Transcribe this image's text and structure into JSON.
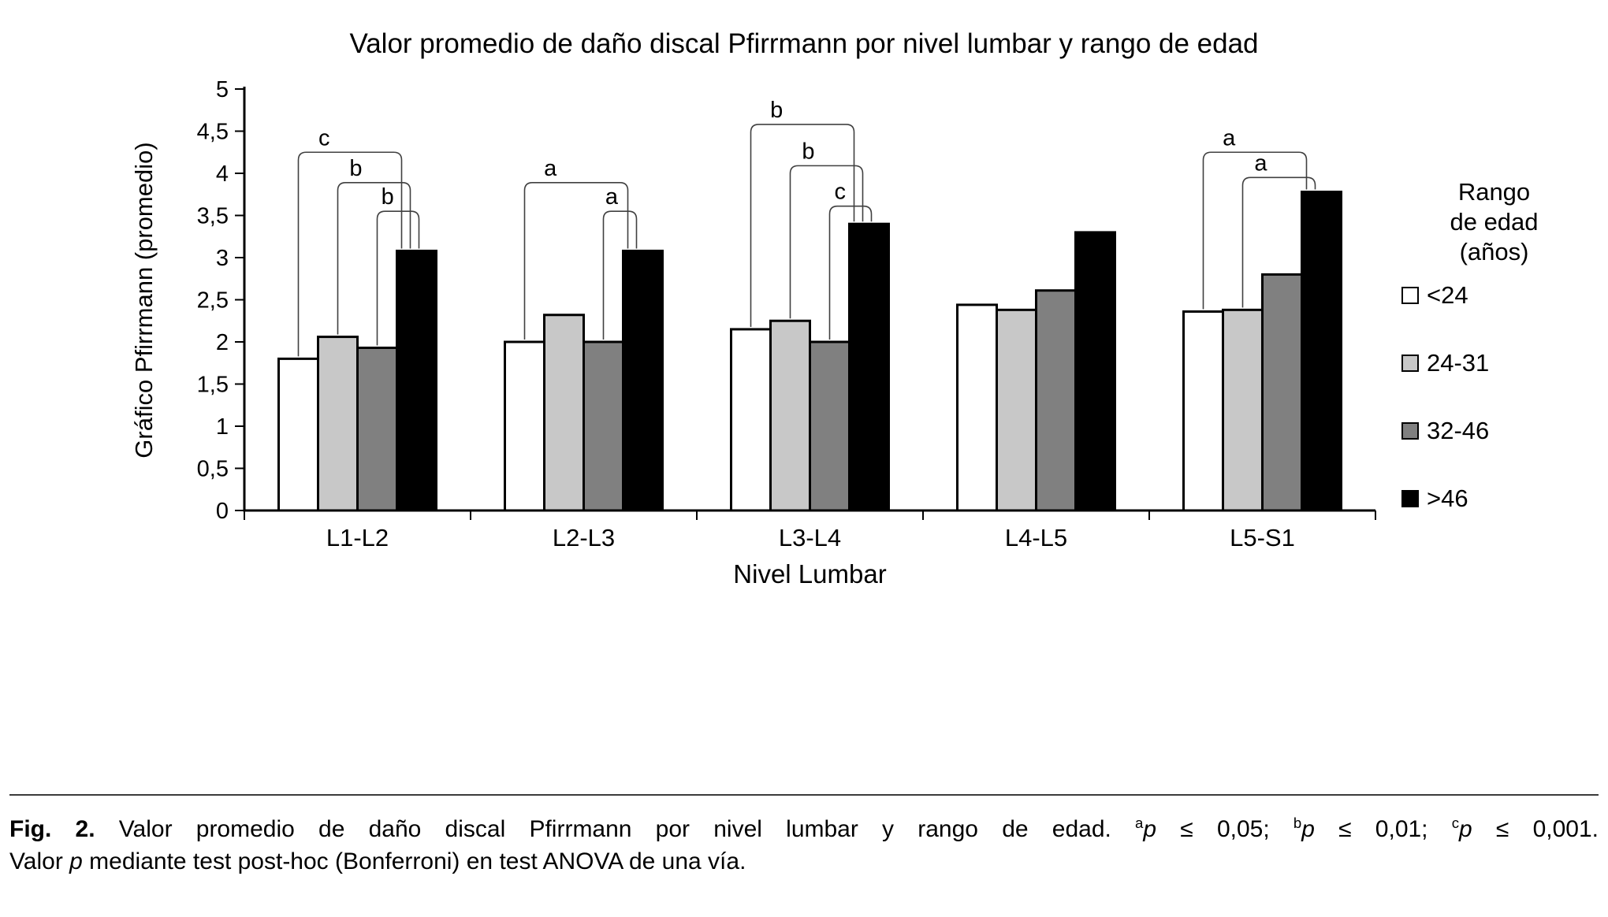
{
  "chart_data": {
    "type": "bar",
    "title": "Valor promedio de daño discal Pfirrmann por nivel lumbar y rango de edad",
    "xlabel": "Nivel Lumbar",
    "ylabel": "Gráfico Pfirrmann (promedio)",
    "ylim": [
      0,
      5
    ],
    "ytick_step": 0.5,
    "ytick_labels": [
      "0",
      "0,5",
      "1",
      "1,5",
      "2",
      "2,5",
      "3",
      "3,5",
      "4",
      "4,5",
      "5"
    ],
    "categories": [
      "L1-L2",
      "L2-L3",
      "L3-L4",
      "L4-L5",
      "L5-S1"
    ],
    "series": [
      {
        "name": "<24",
        "color": "#ffffff",
        "values": [
          1.8,
          2.0,
          2.15,
          2.44,
          2.36
        ]
      },
      {
        "name": "24-31",
        "color": "#c8c8c8",
        "values": [
          2.06,
          2.32,
          2.25,
          2.38,
          2.38
        ]
      },
      {
        "name": "32-46",
        "color": "#808080",
        "values": [
          1.93,
          2.0,
          2.0,
          2.61,
          2.8
        ]
      },
      {
        "name": ">46",
        "color": "#000000",
        "values": [
          3.08,
          3.08,
          3.4,
          3.3,
          3.78
        ]
      }
    ],
    "legend": {
      "title_lines": [
        "Rango",
        "de edad",
        "(años)"
      ],
      "position": "right"
    },
    "grid": false,
    "significance_brackets": [
      {
        "group": 0,
        "from": 0,
        "to": 3,
        "y": 4.25,
        "label": "c"
      },
      {
        "group": 0,
        "from": 1,
        "to": 3,
        "y": 3.89,
        "label": "b"
      },
      {
        "group": 0,
        "from": 2,
        "to": 3,
        "y": 3.55,
        "label": "b"
      },
      {
        "group": 1,
        "from": 0,
        "to": 3,
        "y": 3.89,
        "label": "a"
      },
      {
        "group": 1,
        "from": 2,
        "to": 3,
        "y": 3.55,
        "label": "a"
      },
      {
        "group": 2,
        "from": 0,
        "to": 3,
        "y": 4.58,
        "label": "b"
      },
      {
        "group": 2,
        "from": 1,
        "to": 3,
        "y": 4.09,
        "label": "b"
      },
      {
        "group": 2,
        "from": 2,
        "to": 3,
        "y": 3.61,
        "label": "c"
      },
      {
        "group": 4,
        "from": 0,
        "to": 3,
        "y": 4.25,
        "label": "a"
      },
      {
        "group": 4,
        "from": 1,
        "to": 3,
        "y": 3.95,
        "label": "a"
      }
    ]
  },
  "caption": {
    "lines": [
      {
        "segments": [
          {
            "text": "Fig. 2.",
            "bold": true
          },
          {
            "text": " Valor promedio de daño discal Pfirrmann por nivel lumbar y rango de edad. "
          },
          {
            "text": "a",
            "sup": true
          },
          {
            "text": "p",
            "italic": true
          },
          {
            "text": " ≤ 0,05; "
          },
          {
            "text": "b",
            "sup": true
          },
          {
            "text": "p",
            "italic": true
          },
          {
            "text": " ≤ 0,01; "
          },
          {
            "text": "c",
            "sup": true
          },
          {
            "text": "p",
            "italic": true
          },
          {
            "text": " ≤ 0,001."
          }
        ]
      },
      {
        "segments": [
          {
            "text": "Valor "
          },
          {
            "text": "p",
            "italic": true
          },
          {
            "text": " mediante test post-hoc (Bonferroni) en test ANOVA de una vía."
          }
        ]
      }
    ]
  },
  "colors": {
    "axis": "#000000",
    "bracket": "#404040",
    "caption_rule": "#3a3a3a"
  }
}
